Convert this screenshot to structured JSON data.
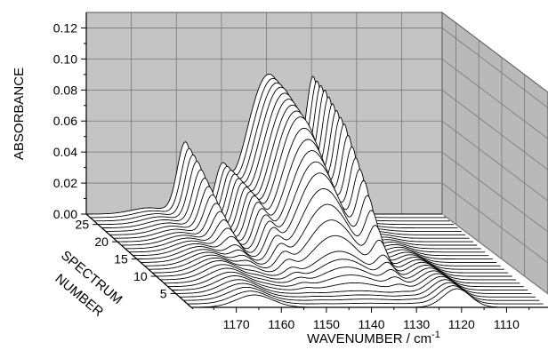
{
  "chart_data": {
    "type": "area",
    "title": "",
    "xlabel": "WAVENUMBER / cm",
    "xlabel_superscript": "-1",
    "ylabel": "ABSORBANCE",
    "zlabel_lines": [
      "SPECTRUM",
      "NUMBER"
    ],
    "x_range": [
      1180,
      1101
    ],
    "y_range": [
      0,
      0.13
    ],
    "z_range": [
      1,
      28
    ],
    "x_ticks": [
      1170,
      1160,
      1150,
      1140,
      1130,
      1120,
      1110
    ],
    "x_tick_labels": [
      "1170",
      "1160",
      "1150",
      "1140",
      "1130",
      "1120",
      "1110"
    ],
    "y_ticks": [
      0,
      0.02,
      0.04,
      0.06,
      0.08,
      0.1,
      0.12
    ],
    "y_tick_labels": [
      "0.00",
      "0.02",
      "0.04",
      "0.06",
      "0.08",
      "0.10",
      "0.12"
    ],
    "z_ticks": [
      5,
      10,
      15,
      20,
      25
    ],
    "z_tick_labels": [
      "5",
      "10",
      "15",
      "20",
      "25"
    ],
    "grid": true,
    "series_count": 28,
    "spectrum_numbers": [
      1,
      5,
      10,
      15,
      20,
      25,
      28
    ],
    "peak_wavenumbers": [
      1166,
      1158,
      1152,
      1140,
      1134,
      1129,
      1121
    ],
    "peak_absorbance_by_spectrum": {
      "1158": [
        0.0,
        0.0,
        0.002,
        0.008,
        0.024,
        0.04,
        0.046
      ],
      "1140": [
        0.0,
        0.002,
        0.018,
        0.062,
        0.09,
        0.099,
        0.101
      ],
      "1129": [
        0.0,
        0.001,
        0.012,
        0.045,
        0.068,
        0.078,
        0.08
      ],
      "1121": [
        0.012,
        0.011,
        0.009,
        0.006,
        0.003,
        0.001,
        0.0
      ],
      "1166": [
        0.008,
        0.009,
        0.01,
        0.008,
        0.006,
        0.005,
        0.004
      ]
    }
  }
}
